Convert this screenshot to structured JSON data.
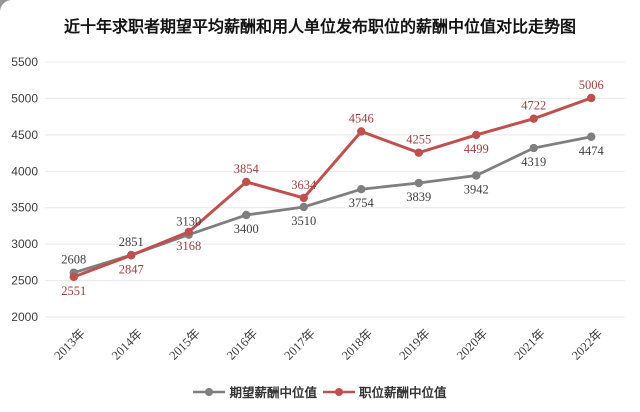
{
  "title": "近十年求职者期望平均薪酬和用人单位发布职位的薪酬中位值对比走势图",
  "chart_data": {
    "type": "line",
    "title": "近十年求职者期望平均薪酬和用人单位发布职位的薪酬中位值对比走势图",
    "categories": [
      "2013年",
      "2014年",
      "2015年",
      "2016年",
      "2017年",
      "2018年",
      "2019年",
      "2020年",
      "2021年",
      "2022年"
    ],
    "series": [
      {
        "name": "期望薪酬中位值",
        "color": "#7f7f7f",
        "label_color": "#404040",
        "values": [
          2608,
          2851,
          3130,
          3400,
          3510,
          3754,
          3839,
          3942,
          4319,
          4474
        ],
        "label_positions": [
          "above",
          "above",
          "above",
          "below",
          "below",
          "below",
          "below",
          "below",
          "below",
          "below"
        ]
      },
      {
        "name": "职位薪酬中位值",
        "color": "#c0504d",
        "label_color": "#a0403e",
        "values": [
          2551,
          2847,
          3168,
          3854,
          3634,
          4546,
          4255,
          4499,
          4722,
          5006
        ],
        "label_positions": [
          "below",
          "below",
          "below",
          "above",
          "above",
          "above",
          "above",
          "below",
          "above",
          "above"
        ]
      }
    ],
    "xlabel": "",
    "ylabel": "",
    "ylim": [
      2000,
      5500
    ],
    "yticks": [
      2000,
      2500,
      3000,
      3500,
      4000,
      4500,
      5000,
      5500
    ],
    "grid": "horizontal",
    "gridline_color": "#e8e8e8",
    "legend_position": "bottom",
    "x_label_rotation": 45
  }
}
